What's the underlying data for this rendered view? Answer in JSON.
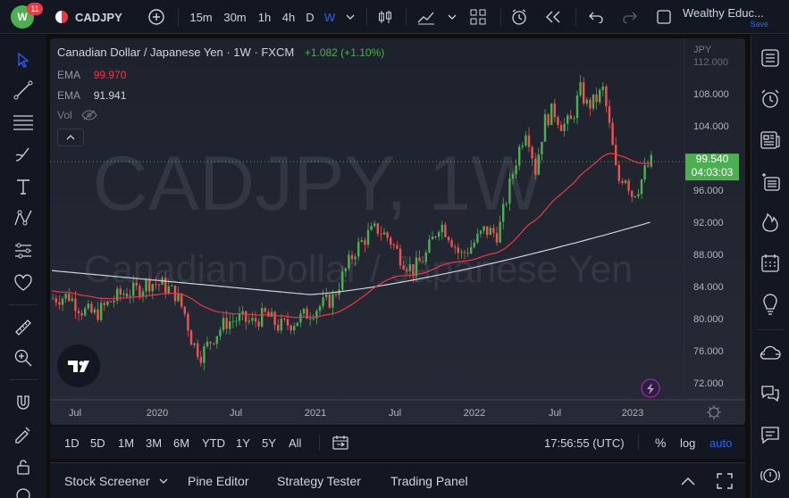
{
  "topbar": {
    "notification_count": "11",
    "symbol": "CADJPY",
    "intervals": [
      "15m",
      "30m",
      "1h",
      "4h",
      "D",
      "W"
    ],
    "active_interval": "W",
    "account_name": "Wealthy Educ...",
    "save_label": "Save"
  },
  "legend": {
    "title": "Canadian Dollar / Japanese Yen · 1W · FXCM",
    "change": "+1.082 (+1.10%)",
    "ema1_label": "EMA",
    "ema1_value": "99.970",
    "ema2_label": "EMA",
    "ema2_value": "91.941",
    "vol_label": "Vol"
  },
  "watermark": {
    "line1": "CADJPY, 1W",
    "line2": "Canadian Dollar / Japanese Yen"
  },
  "price_axis": {
    "currency": "JPY",
    "ticks": [
      "112.000",
      "108.000",
      "104.000",
      "100.000",
      "96.000",
      "92.000",
      "88.000",
      "84.000",
      "80.000",
      "76.000",
      "72.000"
    ],
    "current_price": "99.540",
    "countdown": "04:03:03"
  },
  "time_axis": {
    "ticks": [
      "Jul",
      "2020",
      "Jul",
      "2021",
      "Jul",
      "2022",
      "Jul",
      "2023"
    ]
  },
  "range_buttons": [
    "1D",
    "5D",
    "1M",
    "3M",
    "6M",
    "YTD",
    "1Y",
    "5Y",
    "All"
  ],
  "clock": "17:56:55 (UTC)",
  "scale_options": {
    "percent": "%",
    "log": "log",
    "auto": "auto"
  },
  "panels": [
    "Stock Screener",
    "Pine Editor",
    "Strategy Tester",
    "Trading Panel"
  ],
  "colors": {
    "up": "#26a69a",
    "up_bright": "#4caf50",
    "down": "#ef5350",
    "ema_fast": "#f23645",
    "ema_slow": "#d1d4dc",
    "accent": "#2962ff",
    "price_label": "#4caf50"
  },
  "chart_data": {
    "type": "candlestick",
    "price_range": [
      70,
      114
    ],
    "series": [
      {
        "name": "CADJPY weekly closes (approx.)"
      },
      {
        "name": "EMA 99.970"
      },
      {
        "name": "EMA 91.941"
      }
    ]
  }
}
